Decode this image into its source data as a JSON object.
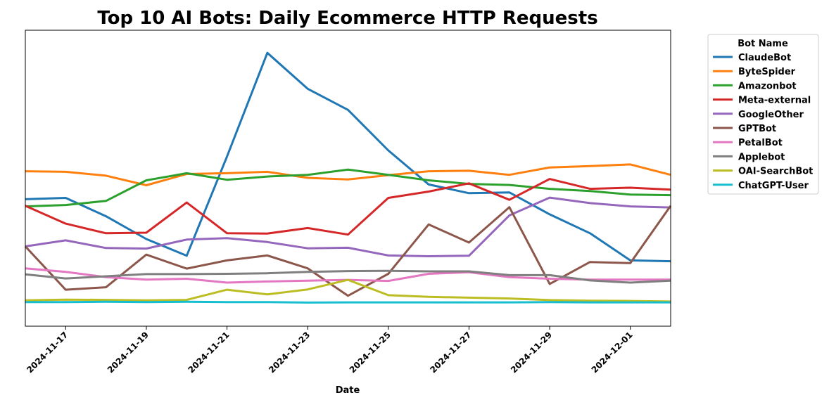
{
  "chart_data": {
    "type": "line",
    "title": "Top 10 AI Bots: Daily Ecommerce HTTP Requests",
    "xlabel": "Date",
    "ylabel": "",
    "x": [
      "2024-11-16",
      "2024-11-17",
      "2024-11-18",
      "2024-11-19",
      "2024-11-20",
      "2024-11-21",
      "2024-11-22",
      "2024-11-23",
      "2024-11-24",
      "2024-11-25",
      "2024-11-26",
      "2024-11-27",
      "2024-11-28",
      "2024-11-29",
      "2024-11-30",
      "2024-12-01",
      "2024-12-02"
    ],
    "x_tick_labels": [
      "2024-11-17",
      "2024-11-19",
      "2024-11-21",
      "2024-11-23",
      "2024-11-25",
      "2024-11-27",
      "2024-11-29",
      "2024-12-01"
    ],
    "ylim": [
      0,
      100
    ],
    "legend": {
      "title": "Bot Name",
      "position": "outside-right"
    },
    "series": [
      {
        "name": "ClaudeBot",
        "color": "#1f77b4",
        "values": [
          42.2,
          42.7,
          36.0,
          27.7,
          21.6,
          57.8,
          95.6,
          82.5,
          74.8,
          60.0,
          47.6,
          44.4,
          44.7,
          36.7,
          29.8,
          19.9,
          19.6
        ]
      },
      {
        "name": "ByteSpider",
        "color": "#ff7f0e",
        "values": [
          52.4,
          52.2,
          50.8,
          47.3,
          51.4,
          51.7,
          52.2,
          50.0,
          49.4,
          51.0,
          52.4,
          52.6,
          51.1,
          53.8,
          54.3,
          54.9,
          51.1
        ]
      },
      {
        "name": "Amazonbot",
        "color": "#2ca02c",
        "values": [
          39.6,
          40.1,
          41.6,
          49.1,
          51.7,
          49.3,
          50.5,
          51.1,
          53.0,
          51.1,
          49.1,
          47.8,
          47.4,
          46.0,
          45.2,
          43.9,
          43.7
        ]
      },
      {
        "name": "Meta-external",
        "color": "#d62728",
        "values": [
          39.8,
          33.3,
          29.8,
          30.0,
          41.0,
          29.8,
          29.7,
          31.7,
          29.3,
          42.7,
          45.0,
          48.0,
          42.0,
          49.6,
          46.0,
          46.4,
          45.7
        ]
      },
      {
        "name": "GoogleOther",
        "color": "#9467bd",
        "values": [
          25.0,
          27.2,
          24.4,
          24.2,
          27.5,
          28.0,
          26.6,
          24.3,
          24.5,
          21.7,
          21.4,
          21.6,
          36.3,
          42.8,
          40.8,
          39.6,
          39.2
        ]
      },
      {
        "name": "GPTBot",
        "color": "#8c564b",
        "values": [
          25.0,
          9.2,
          10.1,
          22.0,
          16.9,
          19.9,
          21.7,
          17.0,
          7.0,
          15.0,
          33.0,
          26.4,
          39.3,
          11.3,
          19.3,
          18.9,
          39.8
        ]
      },
      {
        "name": "PetalBot",
        "color": "#e377c2",
        "values": [
          17.0,
          15.7,
          13.8,
          12.9,
          13.2,
          11.8,
          12.2,
          12.5,
          12.8,
          12.4,
          15.0,
          15.6,
          13.8,
          13.2,
          12.9,
          12.9,
          12.9
        ]
      },
      {
        "name": "Applebot",
        "color": "#7f7f7f",
        "values": [
          14.8,
          13.3,
          14.1,
          14.9,
          14.9,
          15.0,
          15.2,
          15.7,
          16.0,
          16.1,
          15.9,
          15.9,
          14.5,
          14.5,
          12.6,
          11.8,
          12.5
        ]
      },
      {
        "name": "OAI-SearchBot",
        "color": "#bcbd22",
        "values": [
          5.3,
          5.6,
          5.5,
          5.3,
          5.5,
          9.2,
          7.5,
          9.3,
          12.8,
          7.2,
          6.6,
          6.3,
          6.0,
          5.4,
          5.2,
          5.1,
          4.9
        ]
      },
      {
        "name": "ChatGPT-User",
        "color": "#17becf",
        "values": [
          4.7,
          4.7,
          4.8,
          4.7,
          4.8,
          4.7,
          4.7,
          4.5,
          4.6,
          4.6,
          4.6,
          4.6,
          4.6,
          4.7,
          4.6,
          4.6,
          4.6
        ]
      }
    ]
  }
}
